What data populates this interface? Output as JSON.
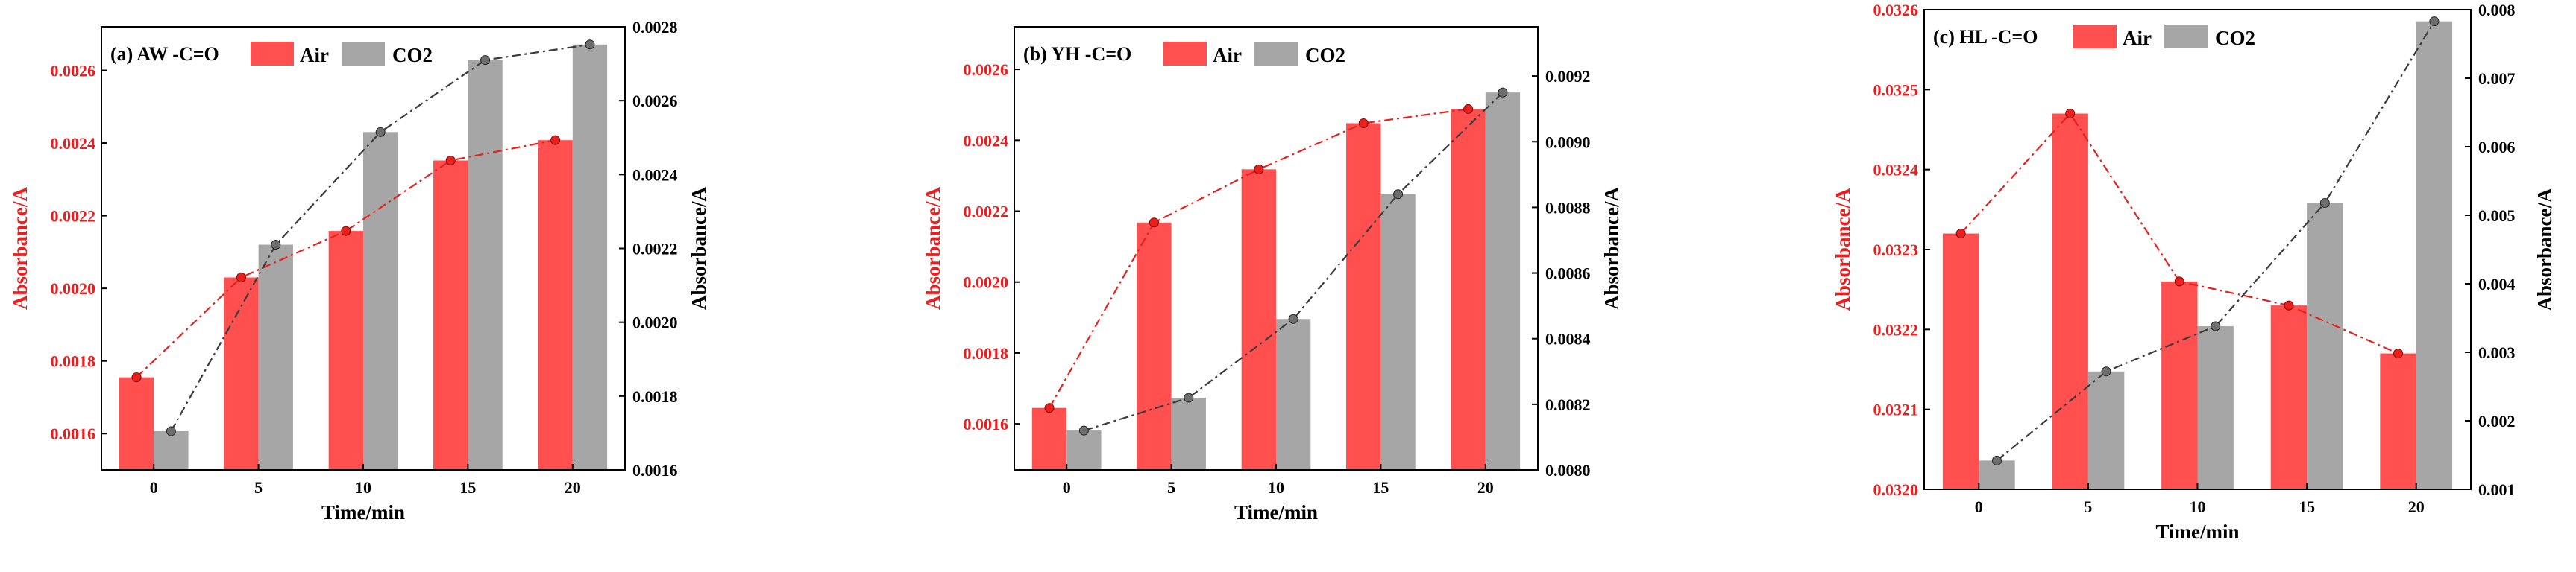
{
  "colors": {
    "air": "#ff4f4f",
    "co2": "#a6a6a6",
    "air_line": "#e8211f",
    "co2_line": "#3c3c3c",
    "left_axis_label": "#ee1c1c",
    "axis": "#000000"
  },
  "legend": {
    "air": "Air",
    "co2": "CO2"
  },
  "chart_data": [
    {
      "type": "bar",
      "title": "(a) AW  -C=O",
      "categories": [
        "0",
        "5",
        "10",
        "15",
        "20"
      ],
      "xlabel": "Time/min",
      "ylabel_left": "Absorbance/A",
      "ylabel_right": "Absorbance/A",
      "ylim_left": [
        0.0015,
        0.00272
      ],
      "ylim_right": [
        0.0016,
        0.0028
      ],
      "yticks_left": [
        "0.0016",
        "0.0018",
        "0.0020",
        "0.0022",
        "0.0024",
        "0.0026"
      ],
      "yticks_right": [
        "0.0016",
        "0.0018",
        "0.0020",
        "0.0022",
        "0.0024",
        "0.0026",
        "0.0028"
      ],
      "series": [
        {
          "name": "Air",
          "axis": "left",
          "values": [
            0.001755,
            0.00203,
            0.002158,
            0.002352,
            0.002408
          ]
        },
        {
          "name": "CO2",
          "axis": "right",
          "values": [
            0.001705,
            0.00221,
            0.002515,
            0.00271,
            0.002752
          ]
        }
      ]
    },
    {
      "type": "bar",
      "title": "(b) YH  -C=O",
      "categories": [
        "0",
        "5",
        "10",
        "15",
        "20"
      ],
      "xlabel": "Time/min",
      "ylabel_left": "Absorbance/A",
      "ylabel_right": "Absorbance/A",
      "ylim_left": [
        0.00147,
        0.00272
      ],
      "ylim_right": [
        0.008,
        0.00935
      ],
      "yticks_left": [
        "0.0016",
        "0.0018",
        "0.0020",
        "0.0022",
        "0.0024",
        "0.0026"
      ],
      "yticks_right": [
        "0.0080",
        "0.0082",
        "0.0084",
        "0.0086",
        "0.0088",
        "0.0090",
        "0.0092"
      ],
      "series": [
        {
          "name": "Air",
          "axis": "left",
          "values": [
            0.001645,
            0.002168,
            0.002318,
            0.002448,
            0.002488
          ]
        },
        {
          "name": "CO2",
          "axis": "right",
          "values": [
            0.00812,
            0.00822,
            0.00846,
            0.00884,
            0.00915
          ]
        }
      ]
    },
    {
      "type": "bar",
      "title": "(c) HL  -C=O",
      "categories": [
        "0",
        "5",
        "10",
        "15",
        "20"
      ],
      "xlabel": "Time/min",
      "ylabel_left": "Absorbance/A",
      "ylabel_right": "Absorbance/A",
      "ylim_left": [
        0.032,
        0.0326
      ],
      "ylim_right": [
        0.001,
        0.008
      ],
      "yticks_left": [
        "0.0320",
        "0.0321",
        "0.0322",
        "0.0323",
        "0.0324",
        "0.0325",
        "0.0326"
      ],
      "yticks_right": [
        "0.001",
        "0.002",
        "0.003",
        "0.004",
        "0.005",
        "0.006",
        "0.007",
        "0.008"
      ],
      "series": [
        {
          "name": "Air",
          "axis": "left",
          "values": [
            0.03232,
            0.03247,
            0.03226,
            0.03223,
            0.03217
          ]
        },
        {
          "name": "CO2",
          "axis": "right",
          "values": [
            0.00142,
            0.00272,
            0.00338,
            0.00518,
            0.00783
          ]
        }
      ]
    }
  ]
}
